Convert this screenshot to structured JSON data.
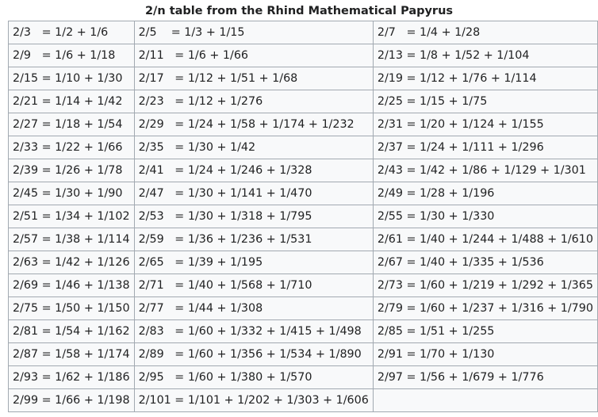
{
  "caption": "2/n table from the Rhind Mathematical Papyrus",
  "rows": [
    [
      "2/3   = 1/2 + 1/6",
      "2/5    = 1/3 + 1/15",
      "2/7   = 1/4 + 1/28"
    ],
    [
      "2/9   = 1/6 + 1/18",
      "2/11   = 1/6 + 1/66",
      "2/13 = 1/8 + 1/52 + 1/104"
    ],
    [
      "2/15 = 1/10 + 1/30",
      "2/17   = 1/12 + 1/51 + 1/68",
      "2/19 = 1/12 + 1/76 + 1/114"
    ],
    [
      "2/21 = 1/14 + 1/42",
      "2/23   = 1/12 + 1/276",
      "2/25 = 1/15 + 1/75"
    ],
    [
      "2/27 = 1/18 + 1/54",
      "2/29   = 1/24 + 1/58 + 1/174 + 1/232",
      "2/31 = 1/20 + 1/124 + 1/155"
    ],
    [
      "2/33 = 1/22 + 1/66",
      "2/35   = 1/30 + 1/42",
      "2/37 = 1/24 + 1/111 + 1/296"
    ],
    [
      "2/39 = 1/26 + 1/78",
      "2/41   = 1/24 + 1/246 + 1/328",
      "2/43 = 1/42 + 1/86 + 1/129 + 1/301"
    ],
    [
      "2/45 = 1/30 + 1/90",
      "2/47   = 1/30 + 1/141 + 1/470",
      "2/49 = 1/28 + 1/196"
    ],
    [
      "2/51 = 1/34 + 1/102",
      "2/53   = 1/30 + 1/318 + 1/795",
      "2/55 = 1/30 + 1/330"
    ],
    [
      "2/57 = 1/38 + 1/114",
      "2/59   = 1/36 + 1/236 + 1/531",
      "2/61 = 1/40 + 1/244 + 1/488 + 1/610"
    ],
    [
      "2/63 = 1/42 + 1/126",
      "2/65   = 1/39 + 1/195",
      "2/67 = 1/40 + 1/335 + 1/536"
    ],
    [
      "2/69 = 1/46 + 1/138",
      "2/71   = 1/40 + 1/568 + 1/710",
      "2/73 = 1/60 + 1/219 + 1/292 + 1/365"
    ],
    [
      "2/75 = 1/50 + 1/150",
      "2/77   = 1/44 + 1/308",
      "2/79 = 1/60 + 1/237 + 1/316 + 1/790"
    ],
    [
      "2/81 = 1/54 + 1/162",
      "2/83   = 1/60 + 1/332 + 1/415 + 1/498",
      "2/85 = 1/51 + 1/255"
    ],
    [
      "2/87 = 1/58 + 1/174",
      "2/89   = 1/60 + 1/356 + 1/534 + 1/890",
      "2/91 = 1/70 + 1/130"
    ],
    [
      "2/93 = 1/62 + 1/186",
      "2/95   = 1/60 + 1/380 + 1/570",
      "2/97 = 1/56 + 1/679 + 1/776"
    ],
    [
      "2/99 = 1/66 + 1/198",
      "2/101 = 1/101 + 1/202 + 1/303 + 1/606",
      ""
    ]
  ]
}
